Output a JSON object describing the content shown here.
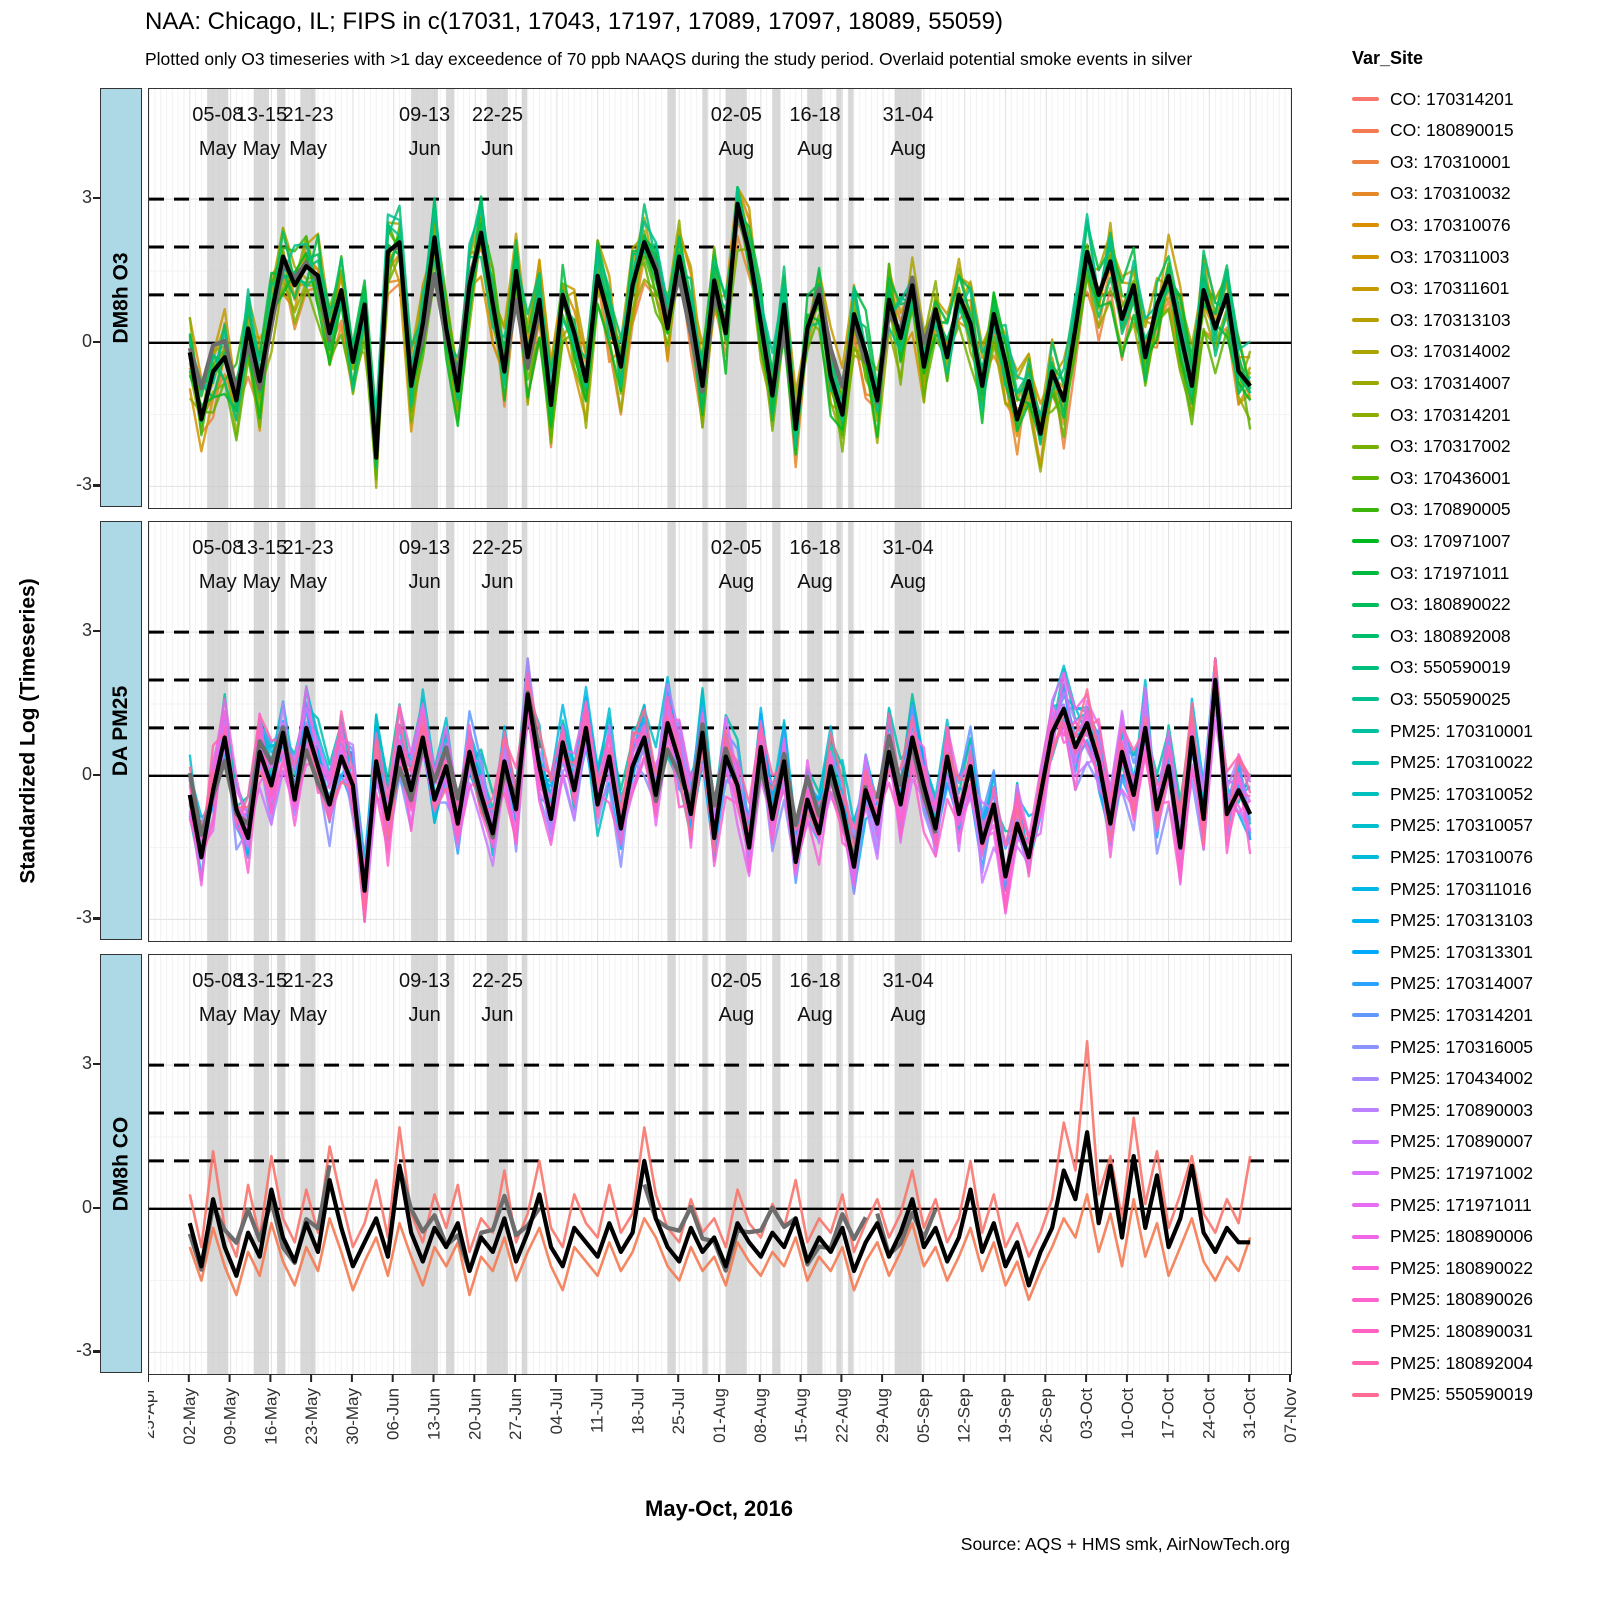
{
  "header": {
    "title": "NAA: Chicago, IL; FIPS in c(17031, 17043, 17197, 17089, 17097, 18089, 55059)",
    "subtitle": "Plotted only O3 timeseries with >1 day exceedence of 70 ppb NAAQS during the study period. Overlaid potential smoke events in silver"
  },
  "axes": {
    "y_title": "Standardized Log (Timeseries)",
    "x_title": "May-Oct, 2016"
  },
  "caption": {
    "text": "Source: AQS + HMS smk, AirNowTech.org"
  },
  "colors": {
    "band": "#c9c9c9",
    "mean_line": "#000000",
    "smoke_mean_line": "#6d6d6d",
    "strip_fill": "#ADD8E6",
    "grid_major": "#e4e4e4",
    "grid_minor": "#f2f2f2",
    "tick_text": "#303030"
  },
  "legend": {
    "title": "Var_Site",
    "entries": [
      {
        "label": "CO: 170314201",
        "color": "#F8766D"
      },
      {
        "label": "CO: 180890015",
        "color": "#F47A51"
      },
      {
        "label": "O3: 170310001",
        "color": "#ED8141"
      },
      {
        "label": "O3: 170310032",
        "color": "#E58825"
      },
      {
        "label": "O3: 170310076",
        "color": "#DB8E00"
      },
      {
        "label": "O3: 170311003",
        "color": "#D09400"
      },
      {
        "label": "O3: 170311601",
        "color": "#C49A00"
      },
      {
        "label": "O3: 170313103",
        "color": "#B79F00"
      },
      {
        "label": "O3: 170314002",
        "color": "#A9A400"
      },
      {
        "label": "O3: 170314007",
        "color": "#9AA900"
      },
      {
        "label": "O3: 170314201",
        "color": "#8AAD00"
      },
      {
        "label": "O3: 170317002",
        "color": "#76B000"
      },
      {
        "label": "O3: 170436001",
        "color": "#5EB300"
      },
      {
        "label": "O3: 170890005",
        "color": "#3CB60A"
      },
      {
        "label": "O3: 170971007",
        "color": "#00B81F"
      },
      {
        "label": "O3: 171971011",
        "color": "#00BA40"
      },
      {
        "label": "O3: 180890022",
        "color": "#00BC59"
      },
      {
        "label": "O3: 180892008",
        "color": "#00BE6C"
      },
      {
        "label": "O3: 550590019",
        "color": "#00BF7D"
      },
      {
        "label": "O3: 550590025",
        "color": "#00C08E"
      },
      {
        "label": "PM25: 170310001",
        "color": "#00C19F"
      },
      {
        "label": "PM25: 170310022",
        "color": "#00C1AF"
      },
      {
        "label": "PM25: 170310052",
        "color": "#00C0BE"
      },
      {
        "label": "PM25: 170310057",
        "color": "#00BECC"
      },
      {
        "label": "PM25: 170310076",
        "color": "#00BCD8"
      },
      {
        "label": "PM25: 170311016",
        "color": "#00B8E5"
      },
      {
        "label": "PM25: 170313103",
        "color": "#00B3F0"
      },
      {
        "label": "PM25: 170313301",
        "color": "#00ABFB"
      },
      {
        "label": "PM25: 170314007",
        "color": "#29A3FF"
      },
      {
        "label": "PM25: 170314201",
        "color": "#5F99FF"
      },
      {
        "label": "PM25: 170316005",
        "color": "#8B93FF"
      },
      {
        "label": "PM25: 170434002",
        "color": "#A88AFF"
      },
      {
        "label": "PM25: 170890003",
        "color": "#BC81FF"
      },
      {
        "label": "PM25: 170890007",
        "color": "#CD79FF"
      },
      {
        "label": "PM25: 171971002",
        "color": "#DC71FA"
      },
      {
        "label": "PM25: 171971011",
        "color": "#E76BF3"
      },
      {
        "label": "PM25: 180890006",
        "color": "#F166E8"
      },
      {
        "label": "PM25: 180890022",
        "color": "#F963DC"
      },
      {
        "label": "PM25: 180890026",
        "color": "#FF61CF"
      },
      {
        "label": "PM25: 180890031",
        "color": "#FF62C1"
      },
      {
        "label": "PM25: 180892004",
        "color": "#FF65AE"
      },
      {
        "label": "PM25: 550590019",
        "color": "#FF6C91"
      }
    ]
  },
  "chart_data": {
    "type": "line",
    "x_unit": "days since 25-Apr-2016, weekly ticks",
    "x_domain_days": [
      0,
      196
    ],
    "x_tick_interval_days": 7,
    "x_tick_labels": [
      "25-Apr",
      "02-May",
      "09-May",
      "16-May",
      "23-May",
      "30-May",
      "06-Jun",
      "13-Jun",
      "20-Jun",
      "27-Jun",
      "04-Jul",
      "11-Jul",
      "18-Jul",
      "25-Jul",
      "01-Aug",
      "08-Aug",
      "15-Aug",
      "22-Aug",
      "29-Aug",
      "05-Sep",
      "12-Sep",
      "19-Sep",
      "26-Sep",
      "03-Oct",
      "10-Oct",
      "17-Oct",
      "24-Oct",
      "31-Oct",
      "07-Nov"
    ],
    "ylim": [
      -3.45,
      5.3
    ],
    "y_tick_values": [
      3,
      0,
      -3
    ],
    "y_tick_labels": [
      "3",
      "0",
      "-3"
    ],
    "reference_lines": {
      "solid": [
        0
      ],
      "dashed": [
        1,
        2,
        3
      ]
    },
    "x_start_day": 7,
    "x_step_days": 2,
    "smoke_events": [
      {
        "label_range": "05-08",
        "label_month": "May",
        "start_day": 10,
        "end_day": 13.6
      },
      {
        "label_range": "13-15",
        "label_month": "May",
        "start_day": 18,
        "end_day": 20.6
      },
      {
        "label_range": "21-23",
        "label_month": "May",
        "start_day": 26,
        "end_day": 28.6
      },
      {
        "label_range": "09-13",
        "label_month": "Jun",
        "start_day": 45,
        "end_day": 49.6
      },
      {
        "label_range": "22-25",
        "label_month": "Jun",
        "start_day": 58,
        "end_day": 61.6
      },
      {
        "label_range": "02-05",
        "label_month": "Aug",
        "start_day": 99,
        "end_day": 102.6
      },
      {
        "label_range": "16-18",
        "label_month": "Aug",
        "start_day": 113,
        "end_day": 115.6
      },
      {
        "label_range": "31-04",
        "label_month": "Aug",
        "start_day": 128,
        "end_day": 132.6
      }
    ],
    "smoke_events_unlabeled": [
      {
        "start_day": 22,
        "end_day": 23.4
      },
      {
        "start_day": 51,
        "end_day": 52.4
      },
      {
        "start_day": 64,
        "end_day": 64.9
      },
      {
        "start_day": 89,
        "end_day": 90.4
      },
      {
        "start_day": 95,
        "end_day": 95.9
      },
      {
        "start_day": 107,
        "end_day": 108.4
      },
      {
        "start_day": 118,
        "end_day": 118.9
      },
      {
        "start_day": 120,
        "end_day": 120.9
      }
    ],
    "panels": [
      {
        "strip_label": "DM8h O3",
        "legend_series_range": [
          2,
          19
        ],
        "mean_black": [
          -0.2,
          -1.6,
          -0.6,
          -0.3,
          -1.2,
          0.3,
          -0.8,
          0.6,
          1.8,
          1.2,
          1.6,
          1.4,
          0.2,
          1.1,
          -0.4,
          0.8,
          -2.4,
          1.9,
          2.1,
          -0.9,
          0.4,
          2.2,
          0.3,
          -1.0,
          1.2,
          2.3,
          0.8,
          -0.6,
          1.5,
          -0.3,
          0.9,
          -1.3,
          1.0,
          0.2,
          -0.8,
          1.4,
          0.5,
          -0.5,
          1.2,
          2.1,
          1.5,
          0.3,
          1.8,
          0.6,
          -0.9,
          1.3,
          0.2,
          2.9,
          1.9,
          0.4,
          -1.1,
          0.8,
          -1.8,
          0.3,
          1.0,
          -0.7,
          -1.5,
          0.6,
          -0.2,
          -1.2,
          0.9,
          0.1,
          1.2,
          -0.5,
          0.7,
          -0.3,
          1.0,
          0.4,
          -0.9,
          0.6,
          -0.4,
          -1.6,
          -0.8,
          -1.9,
          -0.6,
          -1.2,
          0.3,
          1.9,
          1.0,
          1.7,
          0.5,
          1.2,
          -0.3,
          0.8,
          1.4,
          0.2,
          -0.9,
          1.1,
          0.3,
          1.0,
          -0.6,
          -0.9
        ]
      },
      {
        "strip_label": "DA PM25",
        "legend_series_range": [
          20,
          41
        ],
        "mean_black": [
          -0.4,
          -1.7,
          -0.3,
          0.8,
          -0.7,
          -1.3,
          0.5,
          -0.2,
          0.9,
          -0.5,
          1.0,
          0.2,
          -0.6,
          0.4,
          -0.2,
          -2.4,
          0.3,
          -0.9,
          0.6,
          -0.3,
          0.8,
          -0.5,
          0.2,
          -1.0,
          0.5,
          -0.4,
          -1.2,
          0.3,
          -0.7,
          1.7,
          0.2,
          -0.9,
          0.7,
          -0.3,
          1.0,
          -0.6,
          0.4,
          -1.1,
          0.2,
          0.8,
          -0.4,
          1.1,
          0.3,
          -0.8,
          0.9,
          -1.3,
          0.4,
          -0.2,
          -1.5,
          0.6,
          -0.9,
          0.3,
          -1.8,
          -0.5,
          -1.2,
          0.2,
          -0.7,
          -1.9,
          -0.3,
          -1.0,
          0.5,
          -0.6,
          0.8,
          -0.2,
          -1.1,
          0.4,
          -0.8,
          0.2,
          -1.4,
          -0.6,
          -2.1,
          -1.0,
          -1.7,
          -0.4,
          0.9,
          1.4,
          0.6,
          1.1,
          0.3,
          -1.0,
          0.5,
          -0.4,
          1.0,
          -0.7,
          0.2,
          -1.5,
          0.8,
          -0.9,
          2.0,
          -0.8,
          -0.3,
          -0.8
        ]
      },
      {
        "strip_label": "DM8h CO",
        "mean_black": [
          -0.3,
          -1.2,
          0.2,
          -0.8,
          -1.4,
          -0.5,
          -1.0,
          0.4,
          -0.6,
          -1.1,
          -0.3,
          -0.9,
          0.6,
          -0.4,
          -1.2,
          -0.7,
          -0.2,
          -1.0,
          0.9,
          -0.5,
          -1.1,
          -0.4,
          -0.8,
          -0.3,
          -1.3,
          -0.6,
          -0.9,
          -0.2,
          -1.1,
          -0.5,
          0.3,
          -0.8,
          -1.2,
          -0.4,
          -0.7,
          -1.0,
          -0.3,
          -0.9,
          -0.5,
          1.0,
          -0.2,
          -0.8,
          -1.1,
          -0.4,
          -0.9,
          -0.6,
          -1.2,
          -0.3,
          -0.7,
          -1.0,
          -0.5,
          -0.8,
          -0.2,
          -1.1,
          -0.6,
          -0.9,
          -0.4,
          -1.3,
          -0.7,
          -0.3,
          -1.0,
          -0.5,
          0.2,
          -0.8,
          -0.4,
          -1.1,
          -0.6,
          0.4,
          -0.9,
          -0.3,
          -1.2,
          -0.7,
          -1.6,
          -0.9,
          -0.4,
          0.8,
          0.2,
          1.6,
          -0.3,
          0.9,
          -0.6,
          1.1,
          -0.4,
          0.7,
          -0.8,
          -0.2,
          0.9,
          -0.5,
          -0.9,
          -0.4,
          -0.7,
          -0.7
        ],
        "series": [
          {
            "legend_index": 0,
            "values": [
              0.3,
              -0.8,
              1.2,
              -0.4,
              -1.0,
              0.5,
              -0.6,
              1.1,
              -0.2,
              -0.7,
              0.4,
              -0.5,
              1.3,
              0.2,
              -0.8,
              -0.3,
              0.6,
              -0.6,
              1.7,
              -0.1,
              -0.7,
              0.3,
              -0.4,
              0.5,
              -0.9,
              -0.2,
              -0.5,
              0.8,
              -0.7,
              -0.1,
              1.0,
              -0.4,
              -0.8,
              0.3,
              -0.3,
              -0.6,
              0.5,
              -0.5,
              -0.1,
              1.7,
              0.3,
              -0.4,
              -0.7,
              0.2,
              -0.5,
              -0.2,
              -0.8,
              0.4,
              -0.3,
              -0.6,
              0.1,
              -0.4,
              0.6,
              -0.7,
              -0.2,
              -0.5,
              0.3,
              -0.9,
              -0.3,
              0.2,
              -0.6,
              -0.1,
              0.8,
              -0.4,
              0.2,
              -0.7,
              -0.2,
              1.0,
              -0.5,
              0.3,
              -0.8,
              -0.3,
              -1.0,
              -0.5,
              0.2,
              1.8,
              0.8,
              3.5,
              0.3,
              1.1,
              -0.2,
              1.9,
              0.1,
              1.2,
              -0.4,
              0.3,
              1.1,
              -0.1,
              -0.5,
              0.2,
              -0.3,
              1.1
            ]
          },
          {
            "legend_index": 1,
            "values": [
              -0.8,
              -1.5,
              -0.4,
              -1.2,
              -1.8,
              -0.9,
              -1.4,
              -0.3,
              -1.1,
              -1.6,
              -0.8,
              -1.3,
              -0.2,
              -0.9,
              -1.7,
              -1.1,
              -0.6,
              -1.4,
              -0.3,
              -1.0,
              -1.6,
              -0.8,
              -1.2,
              -0.7,
              -1.8,
              -1.0,
              -1.3,
              -0.6,
              -1.5,
              -0.9,
              -0.4,
              -1.2,
              -1.7,
              -0.8,
              -1.1,
              -1.4,
              -0.7,
              -1.3,
              -0.9,
              -0.2,
              -0.6,
              -1.2,
              -1.5,
              -0.8,
              -1.3,
              -1.0,
              -1.6,
              -0.7,
              -1.1,
              -1.4,
              -0.9,
              -1.2,
              -0.6,
              -1.5,
              -1.0,
              -1.3,
              -0.8,
              -1.7,
              -1.1,
              -0.7,
              -1.4,
              -0.9,
              -0.3,
              -1.2,
              -0.8,
              -1.5,
              -1.0,
              -0.4,
              -1.3,
              -0.7,
              -1.6,
              -1.1,
              -1.9,
              -1.3,
              -0.8,
              -0.2,
              -0.6,
              0.3,
              -0.9,
              -0.1,
              -1.2,
              0.2,
              -1.0,
              -0.3,
              -1.4,
              -0.8,
              -0.2,
              -1.1,
              -1.5,
              -1.0,
              -1.3,
              -0.6
            ]
          }
        ]
      }
    ]
  }
}
